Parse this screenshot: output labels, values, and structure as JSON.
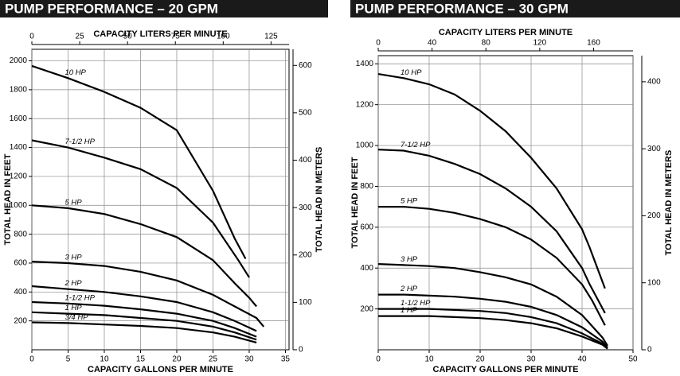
{
  "chart_data": [
    {
      "type": "line",
      "title": "PUMP PERFORMANCE – 20 GPM",
      "x_label": "CAPACITY GALLONS PER MINUTE",
      "x2_label": "CAPACITY LITERS PER MINUTE",
      "y_label": "TOTAL HEAD IN FEET",
      "y2_label": "TOTAL HEAD IN METERS",
      "xlim": [
        0,
        35.5
      ],
      "xticks": [
        0,
        5,
        10,
        15,
        20,
        25,
        30,
        35
      ],
      "x2lim": [
        0,
        134.4
      ],
      "x2ticks": [
        0,
        25,
        50,
        75,
        100,
        125
      ],
      "ylim": [
        0,
        2080
      ],
      "yticks": [
        200,
        400,
        600,
        800,
        1000,
        1200,
        1400,
        1600,
        1800,
        2000
      ],
      "y2lim": [
        0,
        634
      ],
      "y2ticks": [
        0,
        100,
        200,
        300,
        400,
        500,
        600
      ],
      "grid": true,
      "series": [
        {
          "name": "10 HP",
          "color": "#000000",
          "x": [
            0,
            5,
            10,
            15,
            20,
            25,
            28,
            29.5
          ],
          "values": [
            1965,
            1880,
            1785,
            1675,
            1520,
            1100,
            770,
            630
          ]
        },
        {
          "name": "7-1/2 HP",
          "color": "#000000",
          "x": [
            0,
            5,
            10,
            15,
            20,
            25,
            28.5,
            30
          ],
          "values": [
            1450,
            1400,
            1330,
            1250,
            1120,
            880,
            620,
            500
          ]
        },
        {
          "name": "5 HP",
          "color": "#000000",
          "x": [
            0,
            5,
            10,
            15,
            20,
            25,
            28,
            30,
            31
          ],
          "values": [
            1000,
            980,
            940,
            870,
            780,
            620,
            460,
            360,
            300
          ]
        },
        {
          "name": "3 HP",
          "color": "#000000",
          "x": [
            0,
            5,
            10,
            15,
            20,
            25,
            28,
            31,
            32
          ],
          "values": [
            610,
            600,
            580,
            540,
            480,
            380,
            300,
            220,
            160
          ]
        },
        {
          "name": "2 HP",
          "color": "#000000",
          "x": [
            0,
            5,
            10,
            15,
            20,
            25,
            28,
            31
          ],
          "values": [
            440,
            420,
            400,
            370,
            330,
            260,
            200,
            130
          ]
        },
        {
          "name": "1-1/2 HP",
          "color": "#000000",
          "x": [
            0,
            5,
            10,
            15,
            20,
            25,
            28,
            31
          ],
          "values": [
            330,
            320,
            305,
            280,
            250,
            200,
            150,
            90
          ]
        },
        {
          "name": "1 HP",
          "color": "#000000",
          "x": [
            0,
            5,
            10,
            15,
            20,
            25,
            28,
            31
          ],
          "values": [
            260,
            250,
            240,
            220,
            200,
            160,
            120,
            70
          ]
        },
        {
          "name": "3/4 HP",
          "color": "#000000",
          "x": [
            0,
            5,
            10,
            15,
            20,
            25,
            28,
            31
          ],
          "values": [
            190,
            185,
            175,
            165,
            150,
            120,
            90,
            50
          ]
        }
      ]
    },
    {
      "type": "line",
      "title": "PUMP PERFORMANCE – 30 GPM",
      "x_label": "CAPACITY GALLONS PER MINUTE",
      "x2_label": "CAPACITY LITERS PER MINUTE",
      "y_label": "TOTAL HEAD IN FEET",
      "y2_label": "TOTAL HEAD IN METERS",
      "xlim": [
        0,
        50
      ],
      "xticks": [
        0,
        10,
        20,
        30,
        40,
        50
      ],
      "x2lim": [
        0,
        189.3
      ],
      "x2ticks": [
        0,
        40,
        80,
        120,
        160
      ],
      "ylim": [
        0,
        1440
      ],
      "yticks": [
        200,
        400,
        600,
        800,
        1000,
        1200,
        1400
      ],
      "y2lim": [
        0,
        439
      ],
      "y2ticks": [
        0,
        100,
        200,
        300,
        400
      ],
      "grid": true,
      "series": [
        {
          "name": "10 HP",
          "color": "#000000",
          "x": [
            0,
            5,
            10,
            15,
            20,
            25,
            30,
            35,
            40,
            41.5,
            44.5
          ],
          "values": [
            1350,
            1330,
            1300,
            1250,
            1170,
            1070,
            940,
            790,
            590,
            500,
            300
          ]
        },
        {
          "name": "7-1/2 HP",
          "color": "#000000",
          "x": [
            0,
            5,
            10,
            15,
            20,
            25,
            30,
            35,
            40,
            41.5,
            44.5
          ],
          "values": [
            980,
            975,
            950,
            910,
            860,
            790,
            700,
            580,
            400,
            320,
            180
          ]
        },
        {
          "name": "5 HP",
          "color": "#000000",
          "x": [
            0,
            5,
            10,
            15,
            20,
            25,
            30,
            35,
            40,
            42,
            44.5
          ],
          "values": [
            700,
            700,
            690,
            670,
            640,
            600,
            540,
            450,
            320,
            240,
            120
          ]
        },
        {
          "name": "3 HP",
          "color": "#000000",
          "x": [
            0,
            5,
            10,
            15,
            20,
            25,
            30,
            35,
            40,
            44,
            45
          ],
          "values": [
            420,
            415,
            410,
            400,
            380,
            355,
            320,
            260,
            170,
            60,
            20
          ]
        },
        {
          "name": "2 HP",
          "color": "#000000",
          "x": [
            0,
            5,
            10,
            15,
            20,
            25,
            30,
            35,
            40,
            44,
            45
          ],
          "values": [
            270,
            270,
            265,
            260,
            250,
            235,
            210,
            170,
            110,
            40,
            10
          ]
        },
        {
          "name": "1-1/2 HP",
          "color": "#000000",
          "x": [
            0,
            5,
            10,
            15,
            20,
            25,
            30,
            35,
            40,
            44,
            45
          ],
          "values": [
            200,
            200,
            200,
            195,
            190,
            180,
            160,
            130,
            80,
            30,
            10
          ]
        },
        {
          "name": "1 HP",
          "color": "#000000",
          "x": [
            0,
            5,
            10,
            15,
            20,
            25,
            30,
            35,
            40,
            44,
            45
          ],
          "values": [
            165,
            165,
            165,
            160,
            155,
            145,
            130,
            105,
            65,
            25,
            5
          ]
        }
      ]
    }
  ]
}
